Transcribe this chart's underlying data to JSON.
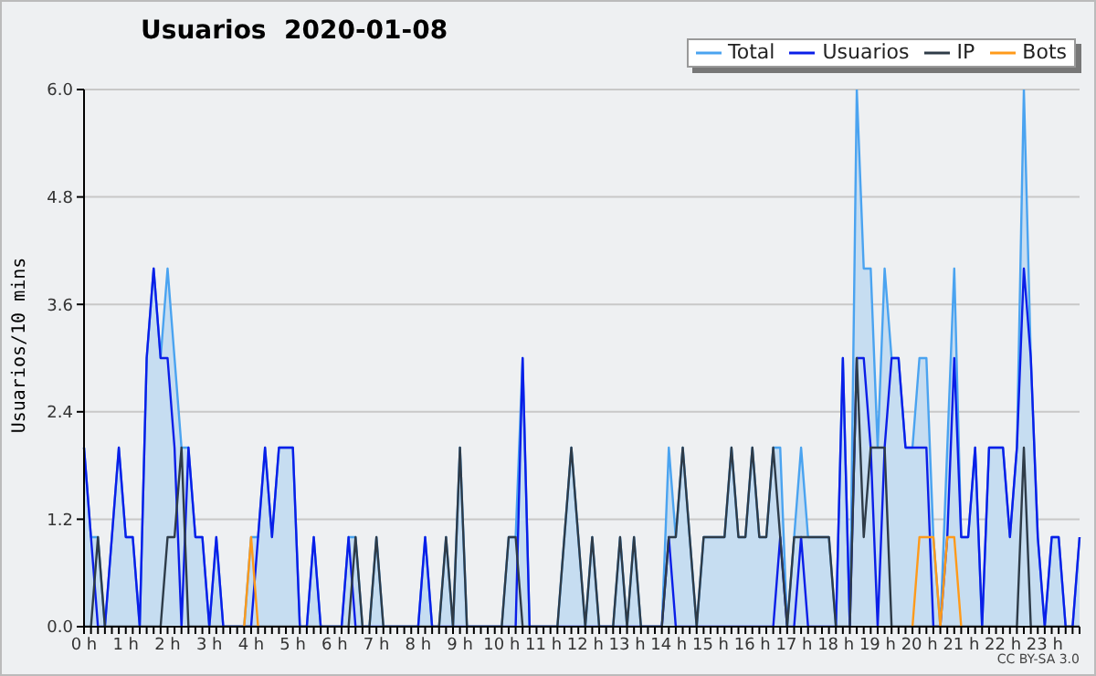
{
  "chart_data": {
    "type": "line",
    "title": "Usuarios  2020-01-08",
    "ylabel": "Usuarios/10 mins",
    "annotations": [
      "CC BY-SA 3.0"
    ],
    "categories": [
      "0 h",
      null,
      null,
      null,
      null,
      null,
      "1 h",
      null,
      null,
      null,
      null,
      null,
      "2 h",
      null,
      null,
      null,
      null,
      null,
      "3 h",
      null,
      null,
      null,
      null,
      null,
      "4 h",
      null,
      null,
      null,
      null,
      null,
      "5 h",
      null,
      null,
      null,
      null,
      null,
      "6 h",
      null,
      null,
      null,
      null,
      null,
      "7 h",
      null,
      null,
      null,
      null,
      null,
      "8 h",
      null,
      null,
      null,
      null,
      null,
      "9 h",
      null,
      null,
      null,
      null,
      null,
      "10 h",
      null,
      null,
      null,
      null,
      null,
      "11 h",
      null,
      null,
      null,
      null,
      null,
      "12 h",
      null,
      null,
      null,
      null,
      null,
      "13 h",
      null,
      null,
      null,
      null,
      null,
      "14 h",
      null,
      null,
      null,
      null,
      null,
      "15 h",
      null,
      null,
      null,
      null,
      null,
      "16 h",
      null,
      null,
      null,
      null,
      null,
      "17 h",
      null,
      null,
      null,
      null,
      null,
      "18 h",
      null,
      null,
      null,
      null,
      null,
      "19 h",
      null,
      null,
      null,
      null,
      null,
      "20 h",
      null,
      null,
      null,
      null,
      null,
      "21 h",
      null,
      null,
      null,
      null,
      null,
      "22 h",
      null,
      null,
      null,
      null,
      null,
      "23 h",
      null,
      null,
      null,
      null,
      null
    ],
    "ylim": [
      0,
      6
    ],
    "yticks": [
      {
        "value": 0,
        "label": "0.0"
      },
      1.2,
      2.4,
      3.6,
      4.8,
      {
        "value": 6,
        "label": "6.0"
      }
    ],
    "grid": "y",
    "legend": "top right",
    "marker": "none",
    "line_style": "solid",
    "series": [
      {
        "name": "Total",
        "type": "area",
        "color": "#4aa3f0",
        "values": [
          2,
          1,
          1,
          0,
          1,
          2,
          1,
          1,
          0,
          3,
          4,
          3,
          4,
          3,
          2,
          2,
          1,
          1,
          0,
          1,
          0,
          0,
          0,
          0,
          1,
          1,
          2,
          1,
          2,
          2,
          2,
          0,
          0,
          1,
          0,
          0,
          0,
          0,
          1,
          1,
          0,
          0,
          1,
          0,
          0,
          0,
          0,
          0,
          0,
          1,
          0,
          0,
          1,
          0,
          2,
          0,
          0,
          0,
          0,
          0,
          0,
          1,
          1,
          3,
          0,
          0,
          0,
          0,
          0,
          1,
          2,
          1,
          0,
          1,
          0,
          0,
          0,
          1,
          0,
          1,
          0,
          0,
          0,
          0,
          2,
          1,
          2,
          1,
          0,
          1,
          1,
          1,
          1,
          2,
          1,
          1,
          2,
          1,
          1,
          2,
          2,
          0,
          1,
          2,
          1,
          1,
          1,
          1,
          0,
          3,
          0,
          6,
          4,
          4,
          2,
          4,
          3,
          3,
          2,
          2,
          3,
          3,
          1,
          0,
          2,
          4,
          1,
          1,
          2,
          0,
          2,
          2,
          2,
          1,
          2,
          6,
          3,
          1,
          0,
          1,
          1,
          0,
          0,
          1
        ]
      },
      {
        "name": "Usuarios",
        "type": "line",
        "color": "#0a1ee8",
        "values": [
          2,
          1,
          0,
          0,
          1,
          2,
          1,
          1,
          0,
          3,
          4,
          3,
          3,
          2,
          0,
          2,
          1,
          1,
          0,
          1,
          0,
          0,
          0,
          0,
          0,
          1,
          2,
          1,
          2,
          2,
          2,
          0,
          0,
          1,
          0,
          0,
          0,
          0,
          1,
          0,
          0,
          0,
          0,
          0,
          0,
          0,
          0,
          0,
          0,
          1,
          0,
          0,
          0,
          0,
          0,
          0,
          0,
          0,
          0,
          0,
          0,
          0,
          0,
          3,
          0,
          0,
          0,
          0,
          0,
          0,
          0,
          0,
          0,
          0,
          0,
          0,
          0,
          0,
          0,
          0,
          0,
          0,
          0,
          0,
          1,
          0,
          0,
          0,
          0,
          0,
          0,
          0,
          0,
          0,
          0,
          0,
          0,
          0,
          0,
          0,
          1,
          0,
          0,
          1,
          0,
          0,
          0,
          0,
          0,
          3,
          0,
          3,
          3,
          2,
          0,
          2,
          3,
          3,
          2,
          2,
          2,
          2,
          0,
          0,
          1,
          3,
          1,
          1,
          2,
          0,
          2,
          2,
          2,
          1,
          2,
          4,
          3,
          1,
          0,
          1,
          1,
          0,
          0,
          1
        ]
      },
      {
        "name": "IP",
        "type": "line",
        "color": "#2e3b48",
        "values": [
          0,
          0,
          1,
          0,
          0,
          0,
          0,
          0,
          0,
          0,
          0,
          0,
          1,
          1,
          2,
          0,
          0,
          0,
          0,
          0,
          0,
          0,
          0,
          0,
          0,
          0,
          0,
          0,
          0,
          0,
          0,
          0,
          0,
          0,
          0,
          0,
          0,
          0,
          0,
          1,
          0,
          0,
          1,
          0,
          0,
          0,
          0,
          0,
          0,
          0,
          0,
          0,
          1,
          0,
          2,
          0,
          0,
          0,
          0,
          0,
          0,
          1,
          1,
          0,
          0,
          0,
          0,
          0,
          0,
          1,
          2,
          1,
          0,
          1,
          0,
          0,
          0,
          1,
          0,
          1,
          0,
          0,
          0,
          0,
          1,
          1,
          2,
          1,
          0,
          1,
          1,
          1,
          1,
          2,
          1,
          1,
          2,
          1,
          1,
          2,
          1,
          0,
          1,
          1,
          1,
          1,
          1,
          1,
          0,
          0,
          0,
          3,
          1,
          2,
          2,
          2,
          0,
          0,
          0,
          0,
          0,
          0,
          0,
          0,
          0,
          0,
          0,
          0,
          0,
          0,
          0,
          0,
          0,
          0,
          0,
          2,
          0,
          0,
          0,
          0,
          0,
          0,
          0,
          0
        ]
      },
      {
        "name": "Bots",
        "type": "line",
        "color": "#ff9a1a",
        "values": [
          null,
          null,
          null,
          null,
          null,
          null,
          null,
          null,
          null,
          null,
          null,
          null,
          null,
          null,
          null,
          null,
          null,
          null,
          null,
          null,
          null,
          null,
          null,
          0,
          1,
          0,
          null,
          null,
          null,
          null,
          null,
          null,
          null,
          null,
          null,
          null,
          null,
          null,
          null,
          null,
          null,
          null,
          null,
          null,
          null,
          null,
          null,
          null,
          null,
          null,
          null,
          null,
          null,
          null,
          null,
          null,
          null,
          null,
          null,
          null,
          null,
          null,
          null,
          null,
          null,
          null,
          null,
          null,
          null,
          null,
          null,
          null,
          null,
          null,
          null,
          null,
          null,
          null,
          null,
          null,
          null,
          null,
          null,
          null,
          null,
          null,
          null,
          null,
          null,
          null,
          null,
          null,
          null,
          null,
          null,
          null,
          null,
          null,
          null,
          null,
          null,
          null,
          null,
          null,
          null,
          null,
          null,
          null,
          null,
          null,
          null,
          null,
          null,
          null,
          null,
          null,
          null,
          null,
          null,
          0,
          1,
          1,
          1,
          0,
          1,
          1,
          0,
          null,
          null,
          null,
          null,
          null,
          null,
          null,
          null,
          null,
          null,
          null,
          null,
          null,
          null,
          null,
          null,
          null
        ]
      }
    ]
  }
}
